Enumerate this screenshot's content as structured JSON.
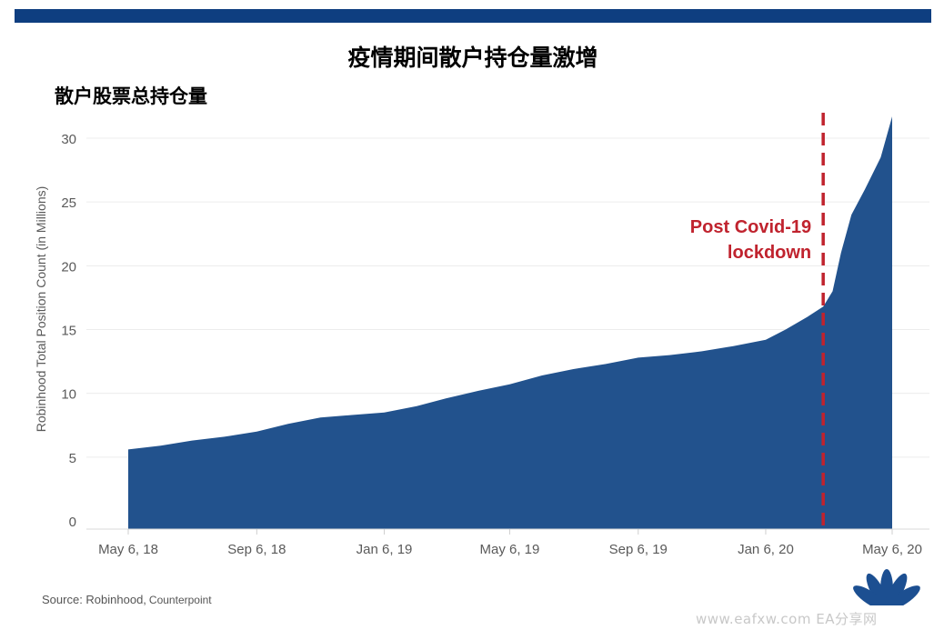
{
  "page": {
    "title": "疫情期间散户持仓量激增",
    "subtitle": "散户股票总持仓量",
    "source_prefix": "Source: Robinhood,",
    "source_suffix": "Counterpoint",
    "watermark": "www.eafxw.com  EA分享网"
  },
  "colors": {
    "top_bar": "#0e3e80",
    "area_fill": "#22528d",
    "annotation": "#c0232e",
    "axis_text": "#5a5a5a"
  },
  "icons": {
    "logo": "peacock-logo"
  },
  "chart_data": {
    "type": "area",
    "ylabel": "Robinhood Total Position Count (in Millions)",
    "xlabel": "",
    "ylim": [
      0,
      30
    ],
    "yticks": [
      0,
      5,
      10,
      15,
      20,
      25,
      30
    ],
    "xlim": [
      "2018-04-10",
      "2020-05-20"
    ],
    "xticks": [
      {
        "date": "2018-05-06",
        "label": "May 6, 18"
      },
      {
        "date": "2018-09-06",
        "label": "Sep 6, 18"
      },
      {
        "date": "2019-01-06",
        "label": "Jan 6, 19"
      },
      {
        "date": "2019-05-06",
        "label": "May 6, 19"
      },
      {
        "date": "2019-09-06",
        "label": "Sep 6, 19"
      },
      {
        "date": "2020-01-06",
        "label": "Jan 6, 20"
      },
      {
        "date": "2020-05-06",
        "label": "May 6, 20"
      }
    ],
    "grid": true,
    "series": [
      {
        "points": [
          [
            "2018-05-06",
            5.6
          ],
          [
            "2018-06-06",
            5.9
          ],
          [
            "2018-07-06",
            6.3
          ],
          [
            "2018-08-06",
            6.6
          ],
          [
            "2018-09-06",
            7.0
          ],
          [
            "2018-10-06",
            7.6
          ],
          [
            "2018-11-06",
            8.1
          ],
          [
            "2018-12-06",
            8.3
          ],
          [
            "2019-01-06",
            8.5
          ],
          [
            "2019-02-06",
            9.0
          ],
          [
            "2019-03-06",
            9.6
          ],
          [
            "2019-04-06",
            10.2
          ],
          [
            "2019-05-06",
            10.7
          ],
          [
            "2019-06-06",
            11.4
          ],
          [
            "2019-07-06",
            11.9
          ],
          [
            "2019-08-06",
            12.3
          ],
          [
            "2019-09-06",
            12.8
          ],
          [
            "2019-10-06",
            13.0
          ],
          [
            "2019-11-06",
            13.3
          ],
          [
            "2019-12-06",
            13.7
          ],
          [
            "2020-01-06",
            14.2
          ],
          [
            "2020-01-25",
            15.0
          ],
          [
            "2020-02-15",
            16.0
          ],
          [
            "2020-03-01",
            16.8
          ],
          [
            "2020-03-10",
            18.0
          ],
          [
            "2020-03-18",
            21.0
          ],
          [
            "2020-03-28",
            24.0
          ],
          [
            "2020-04-10",
            26.0
          ],
          [
            "2020-04-25",
            28.5
          ],
          [
            "2020-05-06",
            31.7
          ]
        ]
      }
    ],
    "annotations": [
      {
        "type": "vline",
        "date": "2020-03-01",
        "style": "dashed",
        "label_lines": [
          "Post Covid-19",
          "lockdown"
        ]
      }
    ]
  }
}
